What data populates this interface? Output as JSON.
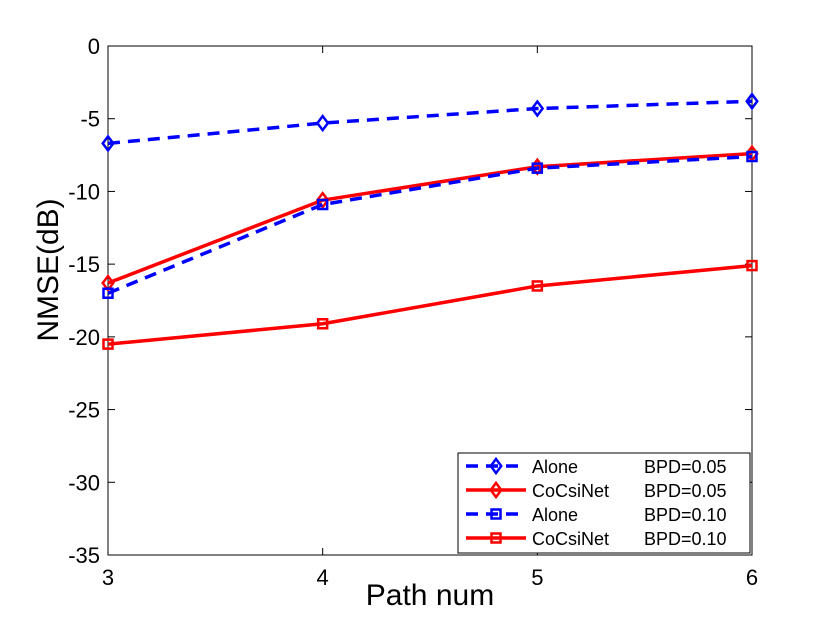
{
  "chart_data": {
    "type": "line",
    "title": "",
    "xlabel": "Path num",
    "ylabel": "NMSE(dB)",
    "x": [
      3,
      4,
      5,
      6
    ],
    "xlim": [
      3,
      6
    ],
    "ylim": [
      -35,
      0
    ],
    "xticks": [
      "3",
      "4",
      "5",
      "6"
    ],
    "yticks": [
      "0",
      "-5",
      "-10",
      "-15",
      "-20",
      "-25",
      "-30",
      "-35"
    ],
    "grid": false,
    "legend_position": "bottom-right",
    "series": [
      {
        "name": "Alone",
        "bpd": "BPD=0.05",
        "values": [
          -6.7,
          -5.3,
          -4.3,
          -3.8
        ],
        "color": "#0000ff",
        "dash": "dashed",
        "marker": "diamond"
      },
      {
        "name": "CoCsiNet",
        "bpd": "BPD=0.05",
        "values": [
          -16.3,
          -10.6,
          -8.3,
          -7.4
        ],
        "color": "#ff0000",
        "dash": "solid",
        "marker": "diamond"
      },
      {
        "name": "Alone",
        "bpd": "BPD=0.10",
        "values": [
          -17.0,
          -10.9,
          -8.4,
          -7.6
        ],
        "color": "#0000ff",
        "dash": "dashed",
        "marker": "square"
      },
      {
        "name": "CoCsiNet",
        "bpd": "BPD=0.10",
        "values": [
          -20.5,
          -19.1,
          -16.5,
          -15.1
        ],
        "color": "#ff0000",
        "dash": "solid",
        "marker": "square"
      }
    ]
  }
}
